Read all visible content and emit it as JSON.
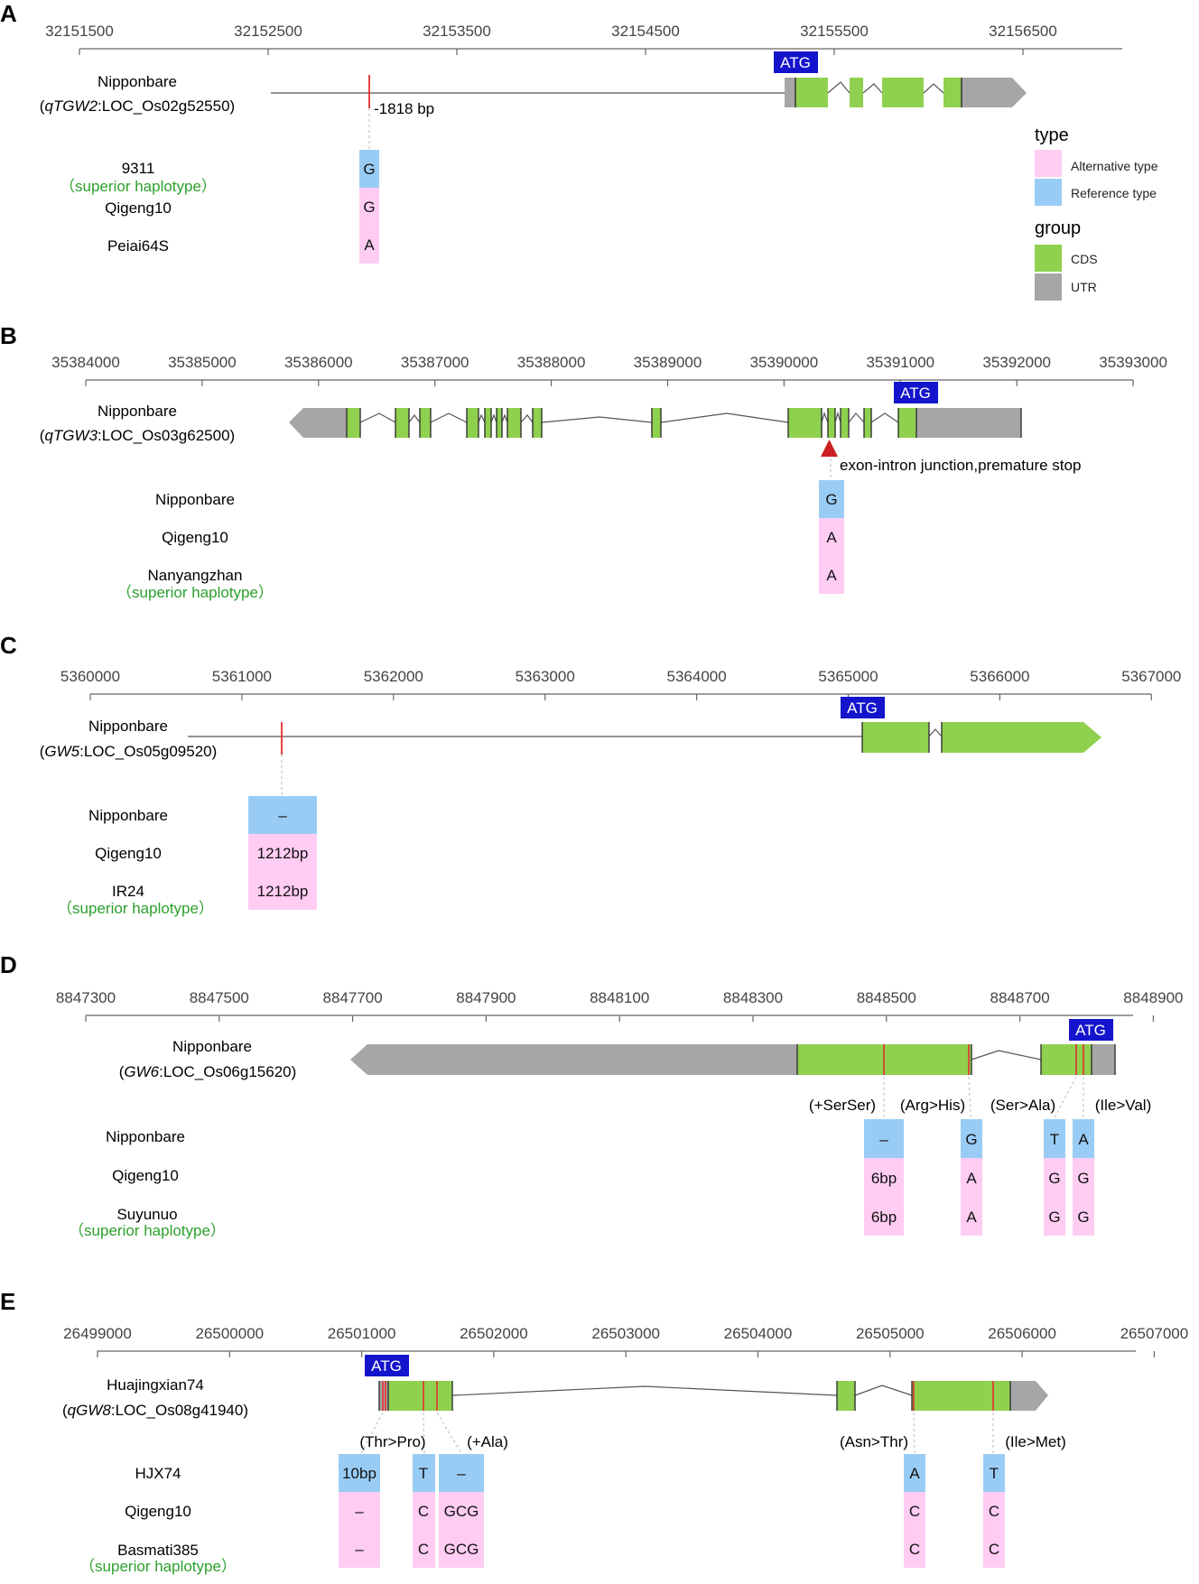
{
  "colors": {
    "cds": "#8fd14f",
    "utr": "#a6a6a6",
    "alternative": "#ffccf2",
    "reference": "#99ccf5",
    "atg": "#1414cc",
    "superior": "#2ca02c",
    "variant": "#e62e2e"
  },
  "legend": {
    "type_title": "type",
    "alt_label": "Alternative type",
    "ref_label": "Reference type",
    "group_title": "group",
    "cds_label": "CDS",
    "utr_label": "UTR"
  },
  "atg_label": "ATG",
  "superior_label": "（superior haplotype）",
  "panels": [
    {
      "letter": "A",
      "ticks": [
        "32151500",
        "32152500",
        "32153500",
        "32154500",
        "32155500",
        "32156500"
      ],
      "gene_name": "Nipponbare",
      "gene_id_italic": "qTGW2",
      "gene_id_rest": ":LOC_Os02g52550)",
      "variant_note": "-1818 bp",
      "rows": [
        "9311",
        "Qigeng10",
        "Peiai64S"
      ],
      "superior_row": 0,
      "variants": [
        {
          "alleles": [
            "G",
            "G",
            "A"
          ],
          "types": [
            "ref",
            "alt",
            "alt"
          ]
        }
      ]
    },
    {
      "letter": "B",
      "ticks": [
        "35384000",
        "35385000",
        "35386000",
        "35387000",
        "35388000",
        "35389000",
        "35390000",
        "35391000",
        "35392000",
        "35393000"
      ],
      "gene_name": "Nipponbare",
      "gene_id_italic": "qTGW3",
      "gene_id_rest": ":LOC_Os03g62500)",
      "variant_note": "exon-intron junction,premature stop",
      "rows": [
        "Nipponbare",
        "Qigeng10",
        "Nanyangzhan"
      ],
      "superior_row": 2,
      "variants": [
        {
          "alleles": [
            "G",
            "A",
            "A"
          ],
          "types": [
            "ref",
            "alt",
            "alt"
          ]
        }
      ]
    },
    {
      "letter": "C",
      "ticks": [
        "5360000",
        "5361000",
        "5362000",
        "5363000",
        "5364000",
        "5365000",
        "5366000",
        "5367000"
      ],
      "gene_name": "Nipponbare",
      "gene_id_italic": "GW5",
      "gene_id_rest": ":LOC_Os05g09520)",
      "rows": [
        "Nipponbare",
        "Qigeng10",
        "IR24"
      ],
      "superior_row": 2,
      "variants": [
        {
          "alleles": [
            "–",
            "1212bp",
            "1212bp"
          ],
          "types": [
            "ref",
            "alt",
            "alt"
          ]
        }
      ]
    },
    {
      "letter": "D",
      "ticks": [
        "8847300",
        "8847500",
        "8847700",
        "8847900",
        "8848100",
        "8848300",
        "8848500",
        "8848700",
        "8848900"
      ],
      "gene_name": "Nipponbare",
      "gene_id_italic": "GW6",
      "gene_id_rest": ":LOC_Os06g15620)",
      "rows": [
        "Nipponbare",
        "Qigeng10",
        "Suyunuo"
      ],
      "superior_row": 2,
      "variants": [
        {
          "effect": "(+SerSer)",
          "alleles": [
            "–",
            "6bp",
            "6bp"
          ],
          "types": [
            "ref",
            "alt",
            "alt"
          ]
        },
        {
          "effect": "(Arg>His)",
          "alleles": [
            "G",
            "A",
            "A"
          ],
          "types": [
            "ref",
            "alt",
            "alt"
          ]
        },
        {
          "effect": "(Ser>Ala)",
          "alleles": [
            "T",
            "G",
            "G"
          ],
          "types": [
            "ref",
            "alt",
            "alt"
          ]
        },
        {
          "effect": "(Ile>Val)",
          "alleles": [
            "A",
            "G",
            "G"
          ],
          "types": [
            "ref",
            "alt",
            "alt"
          ]
        }
      ]
    },
    {
      "letter": "E",
      "ticks": [
        "26499000",
        "26500000",
        "26501000",
        "26502000",
        "26503000",
        "26504000",
        "26505000",
        "26506000",
        "26507000"
      ],
      "gene_name": "Huajingxian74",
      "gene_id_italic": "qGW8",
      "gene_id_rest": ":LOC_Os08g41940)",
      "rows": [
        "HJX74",
        "Qigeng10",
        "Basmati385"
      ],
      "superior_row": 2,
      "variants": [
        {
          "alleles": [
            "10bp",
            "–",
            "–"
          ],
          "types": [
            "ref",
            "alt",
            "alt"
          ]
        },
        {
          "effect": "(Thr>Pro)",
          "alleles": [
            "T",
            "C",
            "C"
          ],
          "types": [
            "ref",
            "alt",
            "alt"
          ]
        },
        {
          "effect": "(+Ala)",
          "alleles": [
            "–",
            "GCG",
            "GCG"
          ],
          "types": [
            "ref",
            "alt",
            "alt"
          ]
        },
        {
          "effect": "(Asn>Thr)",
          "alleles": [
            "A",
            "C",
            "C"
          ],
          "types": [
            "ref",
            "alt",
            "alt"
          ]
        },
        {
          "effect": "(Ile>Met)",
          "alleles": [
            "T",
            "C",
            "C"
          ],
          "types": [
            "ref",
            "alt",
            "alt"
          ]
        }
      ]
    }
  ]
}
